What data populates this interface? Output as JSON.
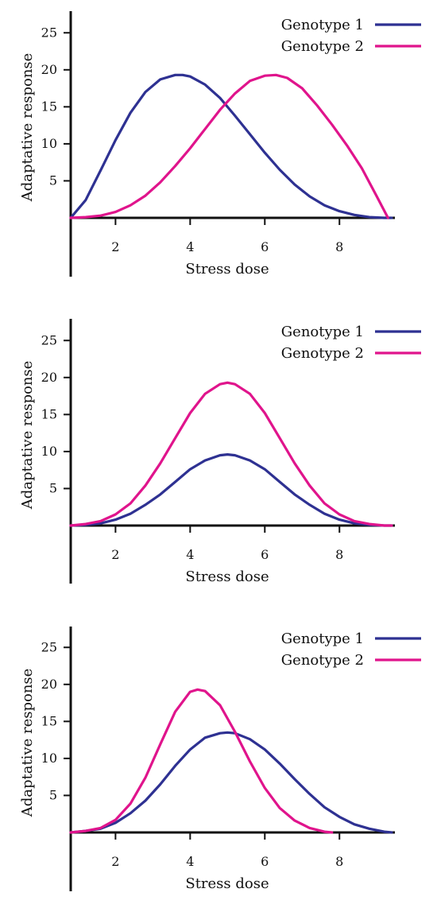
{
  "chart_data": [
    {
      "type": "line",
      "xlabel": "Stress dose",
      "ylabel": "Adaptative response",
      "xticks": [
        2,
        4,
        6,
        8
      ],
      "yticks": [
        5,
        10,
        15,
        20,
        25
      ],
      "xlim": [
        0.8,
        9.4
      ],
      "ylim": [
        -8,
        27.5
      ],
      "legend_position": "top-right",
      "series": [
        {
          "name": "Genotype 1",
          "color": "#2e3192",
          "x": [
            0.8,
            1.2,
            1.6,
            2.0,
            2.4,
            2.8,
            3.2,
            3.6,
            3.8,
            4.0,
            4.4,
            4.8,
            5.2,
            5.6,
            6.0,
            6.4,
            6.8,
            7.2,
            7.6,
            8.0,
            8.4,
            8.8,
            9.2,
            9.4
          ],
          "y": [
            0.0,
            2.4,
            6.4,
            10.5,
            14.2,
            17.0,
            18.7,
            19.3,
            19.3,
            19.1,
            18.0,
            16.2,
            13.8,
            11.3,
            8.8,
            6.5,
            4.5,
            2.9,
            1.7,
            0.9,
            0.4,
            0.1,
            0.0,
            0.0
          ]
        },
        {
          "name": "Genotype 2",
          "color": "#e0148c",
          "x": [
            0.8,
            1.2,
            1.6,
            2.0,
            2.4,
            2.8,
            3.2,
            3.6,
            4.0,
            4.4,
            4.8,
            5.2,
            5.6,
            6.0,
            6.3,
            6.6,
            7.0,
            7.4,
            7.8,
            8.2,
            8.6,
            9.0,
            9.3
          ],
          "y": [
            0.0,
            0.1,
            0.3,
            0.8,
            1.7,
            3.0,
            4.8,
            7.0,
            9.4,
            12.0,
            14.6,
            16.8,
            18.5,
            19.2,
            19.3,
            18.9,
            17.5,
            15.2,
            12.6,
            9.8,
            6.7,
            2.9,
            0.0
          ]
        }
      ]
    },
    {
      "type": "line",
      "xlabel": "Stress dose",
      "ylabel": "Adaptative response",
      "xticks": [
        2,
        4,
        6,
        8
      ],
      "yticks": [
        5,
        10,
        15,
        20,
        25
      ],
      "xlim": [
        0.8,
        9.4
      ],
      "ylim": [
        -8,
        27.5
      ],
      "legend_position": "top-right",
      "series": [
        {
          "name": "Genotype 1",
          "color": "#2e3192",
          "x": [
            0.8,
            1.2,
            1.6,
            2.0,
            2.4,
            2.8,
            3.2,
            3.6,
            4.0,
            4.4,
            4.8,
            5.0,
            5.2,
            5.6,
            6.0,
            6.4,
            6.8,
            7.2,
            7.6,
            8.0,
            8.4,
            8.8,
            9.2,
            9.4
          ],
          "y": [
            0.0,
            0.1,
            0.3,
            0.8,
            1.6,
            2.8,
            4.2,
            5.9,
            7.6,
            8.8,
            9.5,
            9.6,
            9.5,
            8.8,
            7.6,
            5.9,
            4.2,
            2.8,
            1.6,
            0.8,
            0.3,
            0.1,
            0.0,
            0.0
          ]
        },
        {
          "name": "Genotype 2",
          "color": "#e0148c",
          "x": [
            0.8,
            1.2,
            1.6,
            2.0,
            2.4,
            2.8,
            3.2,
            3.6,
            4.0,
            4.4,
            4.8,
            5.0,
            5.2,
            5.6,
            6.0,
            6.4,
            6.8,
            7.2,
            7.6,
            8.0,
            8.4,
            8.8,
            9.2,
            9.4
          ],
          "y": [
            0.0,
            0.2,
            0.6,
            1.5,
            3.0,
            5.4,
            8.4,
            11.8,
            15.2,
            17.8,
            19.1,
            19.3,
            19.1,
            17.8,
            15.2,
            11.8,
            8.4,
            5.4,
            3.0,
            1.5,
            0.6,
            0.2,
            0.0,
            0.0
          ]
        }
      ]
    },
    {
      "type": "line",
      "xlabel": "Stress dose",
      "ylabel": "Adaptative response",
      "xticks": [
        2,
        4,
        6,
        8
      ],
      "yticks": [
        5,
        10,
        15,
        20,
        25
      ],
      "xlim": [
        0.8,
        9.4
      ],
      "ylim": [
        -8,
        27.5
      ],
      "legend_position": "top-right",
      "series": [
        {
          "name": "Genotype 1",
          "color": "#2e3192",
          "x": [
            0.8,
            1.2,
            1.6,
            2.0,
            2.4,
            2.8,
            3.2,
            3.6,
            4.0,
            4.4,
            4.8,
            5.0,
            5.2,
            5.6,
            6.0,
            6.4,
            6.8,
            7.2,
            7.6,
            8.0,
            8.4,
            8.8,
            9.2,
            9.4
          ],
          "y": [
            0.0,
            0.2,
            0.5,
            1.3,
            2.6,
            4.3,
            6.5,
            9.0,
            11.2,
            12.8,
            13.4,
            13.5,
            13.4,
            12.6,
            11.2,
            9.3,
            7.2,
            5.2,
            3.4,
            2.1,
            1.1,
            0.5,
            0.1,
            0.0
          ]
        },
        {
          "name": "Genotype 2",
          "color": "#e0148c",
          "x": [
            0.8,
            1.2,
            1.6,
            2.0,
            2.4,
            2.8,
            3.2,
            3.6,
            4.0,
            4.2,
            4.4,
            4.8,
            5.2,
            5.6,
            6.0,
            6.4,
            6.8,
            7.2,
            7.6,
            7.8
          ],
          "y": [
            0.0,
            0.2,
            0.6,
            1.7,
            3.9,
            7.4,
            11.9,
            16.3,
            19.0,
            19.3,
            19.1,
            17.2,
            13.6,
            9.6,
            6.0,
            3.3,
            1.6,
            0.6,
            0.1,
            0.0
          ]
        }
      ]
    }
  ]
}
